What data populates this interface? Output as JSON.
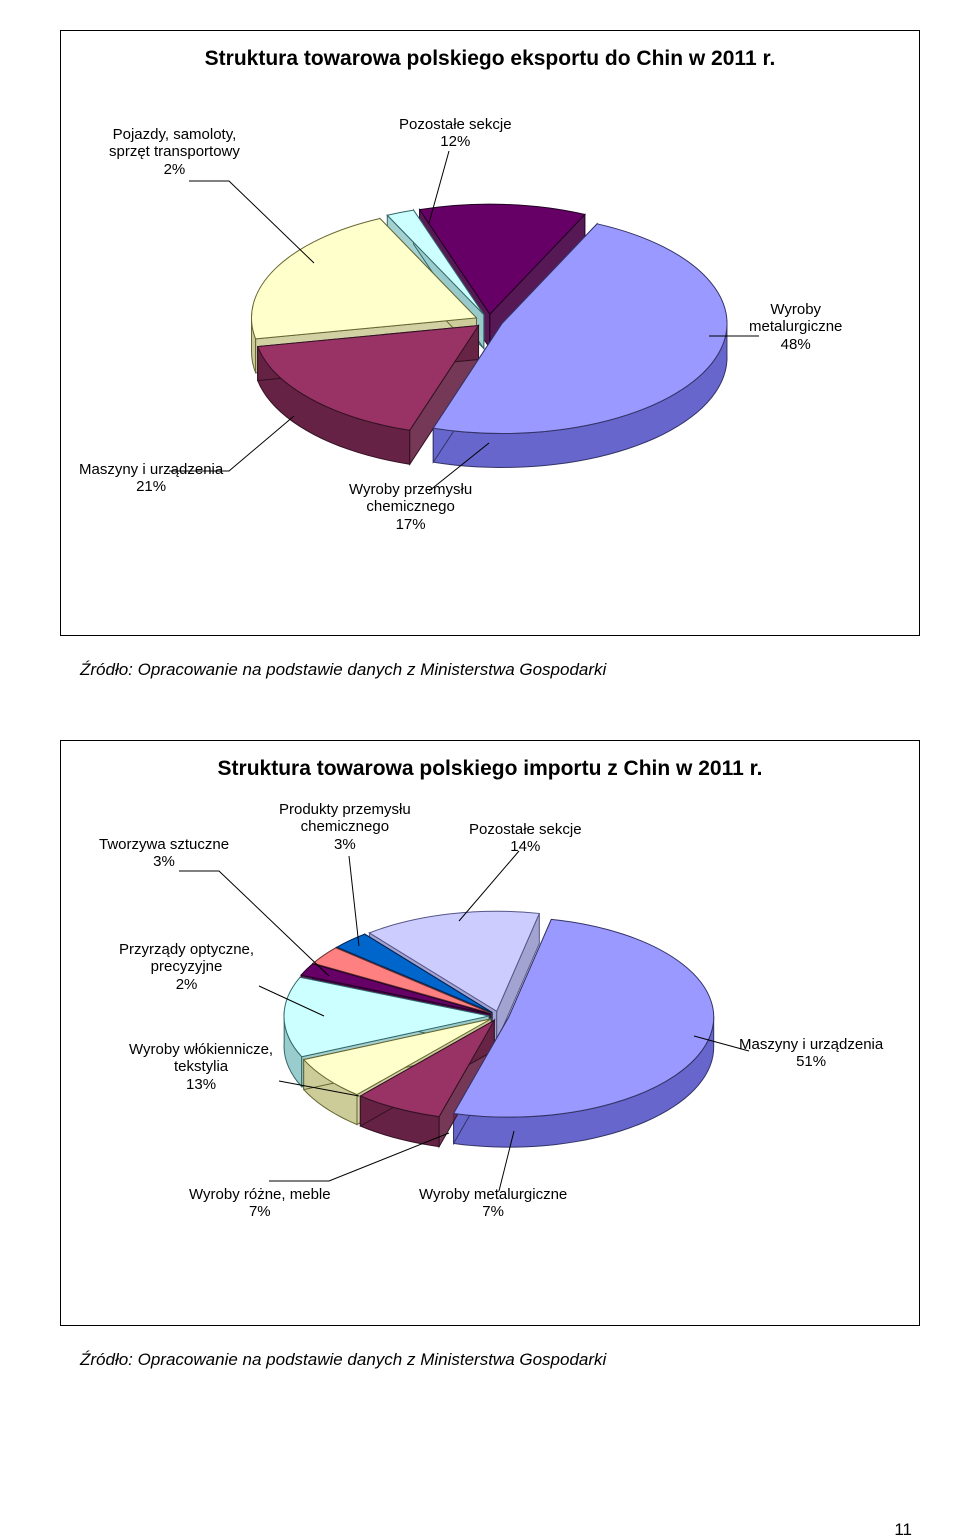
{
  "chart1": {
    "title": "Struktura towarowa polskiego eksportu do Chin w 2011 r.",
    "type": "pie-3d",
    "background_color": "#ffffff",
    "border_color": "#000000",
    "label_fontsize": 15,
    "title_fontsize": 21,
    "slices": [
      {
        "label_l1": "Wyroby",
        "label_l2": "metalurgiczne",
        "label_l3": "48%",
        "value": 48,
        "color": "#9999ff",
        "side": "#6666cc",
        "edge": "#333366"
      },
      {
        "label_l1": "Wyroby przemysłu",
        "label_l2": "chemicznego",
        "label_l3": "17%",
        "value": 17,
        "color": "#993366",
        "side": "#662244",
        "edge": "#331122"
      },
      {
        "label_l1": "Maszyny i urządzenia",
        "label_l2": "21%",
        "label_l3": "",
        "value": 21,
        "color": "#ffffcc",
        "side": "#cccc99",
        "edge": "#666633"
      },
      {
        "label_l1": "Pojazdy, samoloty,",
        "label_l2": "sprzęt transportowy",
        "label_l3": "2%",
        "value": 2,
        "color": "#ccffff",
        "side": "#99cccc",
        "edge": "#336666"
      },
      {
        "label_l1": "Pozostałe sekcje",
        "label_l2": "12%",
        "label_l3": "",
        "value": 12,
        "color": "#660066",
        "side": "#440044",
        "edge": "#220022"
      }
    ]
  },
  "source1": "Źródło: Opracowanie na podstawie danych z Ministerstwa Gospodarki",
  "chart2": {
    "title": "Struktura towarowa polskiego importu z Chin w 2011 r.",
    "type": "pie-3d",
    "background_color": "#ffffff",
    "border_color": "#000000",
    "label_fontsize": 15,
    "title_fontsize": 21,
    "slices": [
      {
        "label_l1": "Maszyny i urządzenia",
        "label_l2": "51%",
        "label_l3": "",
        "value": 51,
        "color": "#9999ff",
        "side": "#6666cc",
        "edge": "#333366"
      },
      {
        "label_l1": "Wyroby metalurgiczne",
        "label_l2": "7%",
        "label_l3": "",
        "value": 7,
        "color": "#993366",
        "side": "#662244",
        "edge": "#331122"
      },
      {
        "label_l1": "Wyroby różne, meble",
        "label_l2": "7%",
        "label_l3": "",
        "value": 7,
        "color": "#ffffcc",
        "side": "#cccc99",
        "edge": "#666633"
      },
      {
        "label_l1": "Wyroby włókiennicze,",
        "label_l2": "tekstylia",
        "label_l3": "13%",
        "value": 13,
        "color": "#ccffff",
        "side": "#99cccc",
        "edge": "#336666"
      },
      {
        "label_l1": "Przyrządy optyczne,",
        "label_l2": "precyzyjne",
        "label_l3": "2%",
        "value": 2,
        "color": "#660066",
        "side": "#440044",
        "edge": "#220022"
      },
      {
        "label_l1": "Tworzywa sztuczne",
        "label_l2": "3%",
        "label_l3": "",
        "value": 3,
        "color": "#ff8080",
        "side": "#cc6060",
        "edge": "#663030"
      },
      {
        "label_l1": "Produkty przemysłu",
        "label_l2": "chemicznego",
        "label_l3": "3%",
        "value": 3,
        "color": "#0066cc",
        "side": "#004499",
        "edge": "#002255"
      },
      {
        "label_l1": "Pozostałe sekcje",
        "label_l2": "14%",
        "label_l3": "",
        "value": 14,
        "color": "#ccccff",
        "side": "#9999cc",
        "edge": "#555588"
      }
    ]
  },
  "source2": "Źródło: Opracowanie na podstawie danych z Ministerstwa Gospodarki",
  "page_number": "11"
}
